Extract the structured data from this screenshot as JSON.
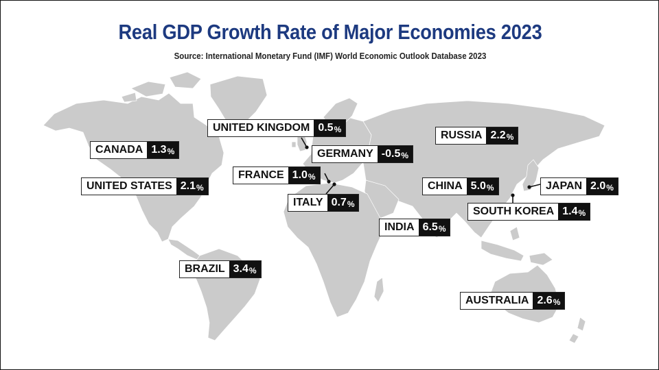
{
  "title": "Real GDP Growth Rate of Major Economies 2023",
  "source": "Source: International Monetary Fund (IMF) World Economic Outlook Database 2023",
  "colors": {
    "title": "#1d3a80",
    "land": "#cbcbcb",
    "value_bg": "#111111"
  },
  "countries": [
    {
      "name": "CANADA",
      "value": "1.3",
      "unit": "%"
    },
    {
      "name": "UNITED STATES",
      "value": "2.1",
      "unit": "%"
    },
    {
      "name": "BRAZIL",
      "value": "3.4",
      "unit": "%"
    },
    {
      "name": "UNITED KINGDOM",
      "value": "0.5",
      "unit": "%"
    },
    {
      "name": "GERMANY",
      "value": "-0.5",
      "unit": "%"
    },
    {
      "name": "FRANCE",
      "value": "1.0",
      "unit": "%"
    },
    {
      "name": "ITALY",
      "value": "0.7",
      "unit": "%"
    },
    {
      "name": "RUSSIA",
      "value": "2.2",
      "unit": "%"
    },
    {
      "name": "CHINA",
      "value": "5.0",
      "unit": "%"
    },
    {
      "name": "JAPAN",
      "value": "2.0",
      "unit": "%"
    },
    {
      "name": "SOUTH KOREA",
      "value": "1.4",
      "unit": "%"
    },
    {
      "name": "INDIA",
      "value": "6.5",
      "unit": "%"
    },
    {
      "name": "AUSTRALIA",
      "value": "2.6",
      "unit": "%"
    }
  ]
}
